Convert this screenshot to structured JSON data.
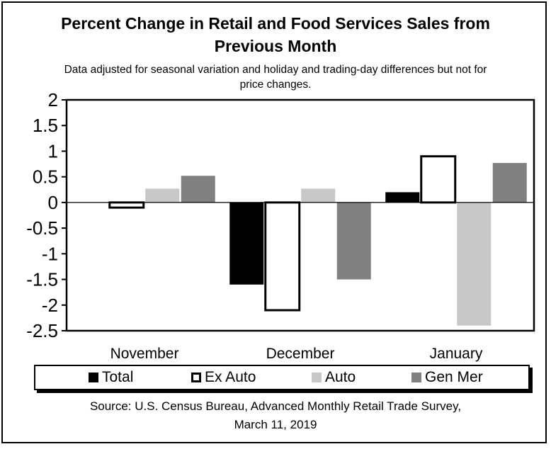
{
  "chart_data": {
    "type": "bar",
    "title_line1": "Percent Change in Retail and Food Services Sales from",
    "title_line2": "Previous Month",
    "subtitle_line1": "Data adjusted for seasonal variation and holiday and trading-day differences but not for",
    "subtitle_line2": "price changes.",
    "categories": [
      "November",
      "December",
      "January"
    ],
    "series": [
      {
        "name": "Total",
        "color": "#000000",
        "values": [
          0.0,
          -1.6,
          0.2
        ]
      },
      {
        "name": "Ex Auto",
        "color": "#ffffff",
        "values": [
          -0.1,
          -2.1,
          0.9
        ]
      },
      {
        "name": "Auto",
        "color": "#c8c8c8",
        "values": [
          0.27,
          0.27,
          -2.4
        ]
      },
      {
        "name": "Gen Mer",
        "color": "#808080",
        "values": [
          0.52,
          -1.5,
          0.77
        ]
      }
    ],
    "ylim": [
      -2.5,
      2
    ],
    "yticks": [
      "2",
      "1.5",
      "1",
      "0.5",
      "0",
      "-0.5",
      "-1",
      "-1.5",
      "-2",
      "-2.5"
    ],
    "legend_position": "bottom",
    "grid": false,
    "source_line1": "Source: U.S. Census Bureau, Advanced Monthly Retail Trade Survey,",
    "source_line2": "March 11, 2019"
  }
}
